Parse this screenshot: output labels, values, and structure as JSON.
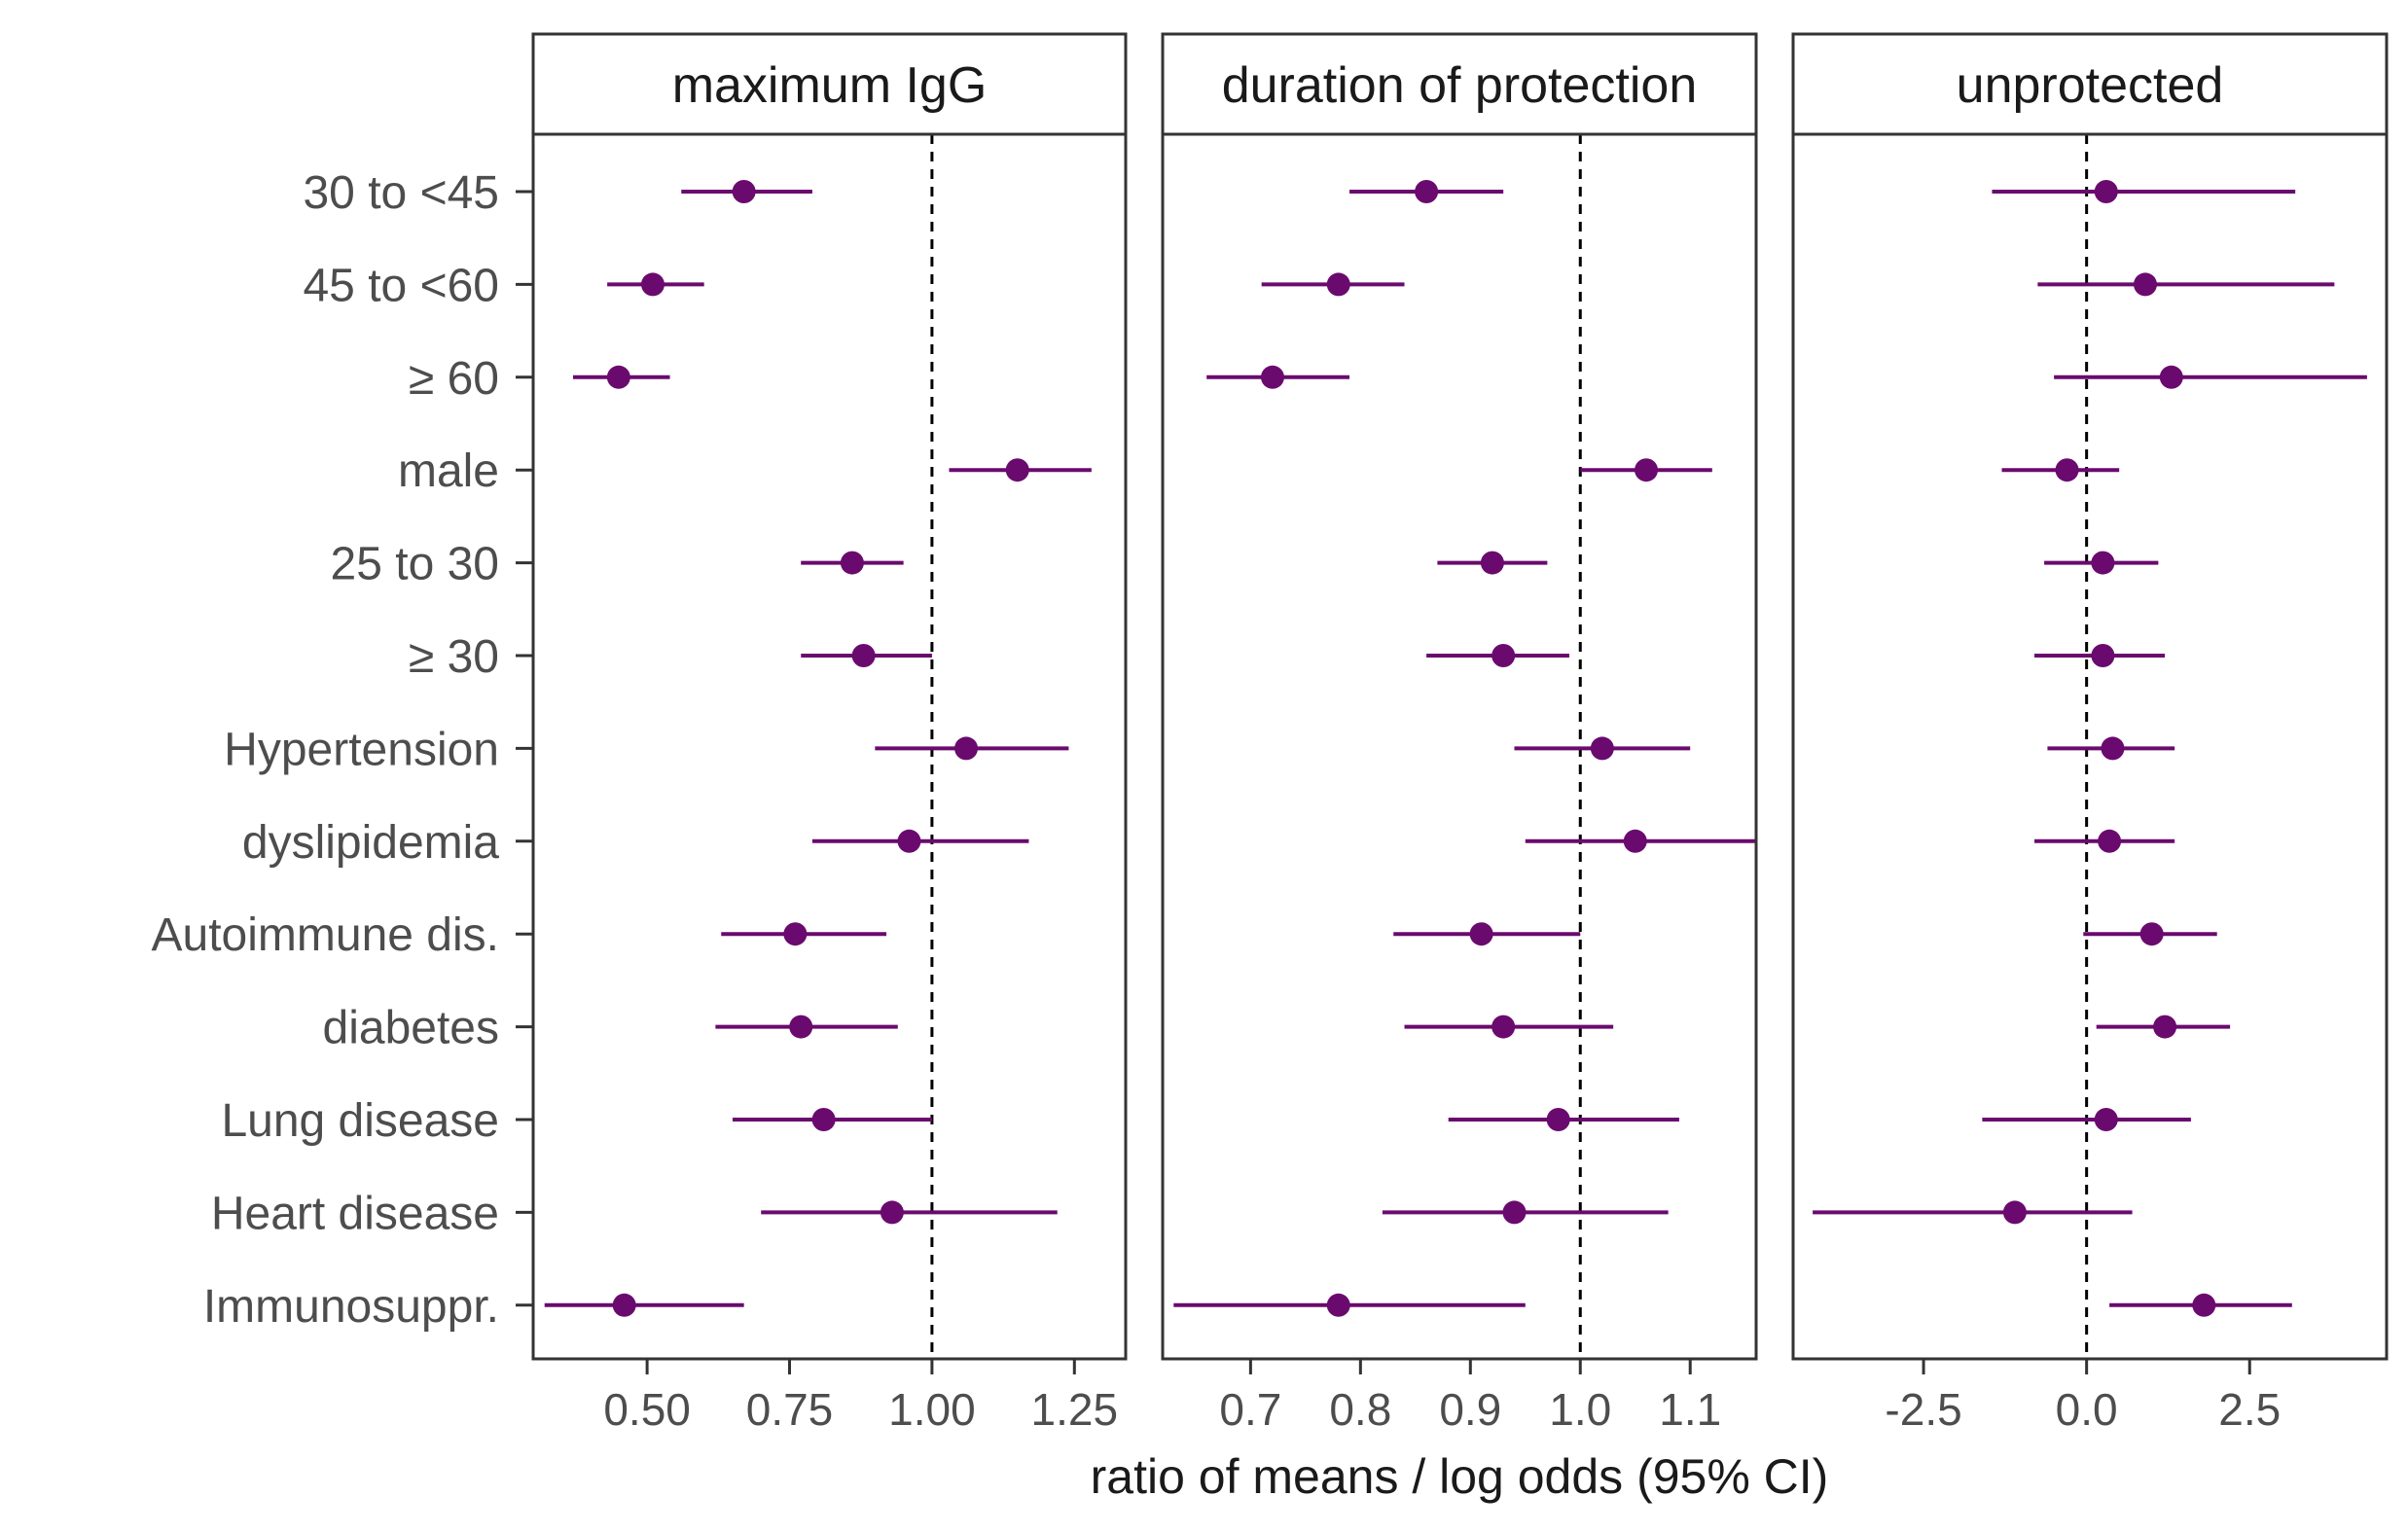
{
  "chart_data": {
    "type": "forest",
    "xlabel": "ratio of means / log odds (95% CI)",
    "categories": [
      "30 to <45",
      "45 to <60",
      "≥ 60",
      "male",
      "25 to 30",
      "≥ 30",
      "Hypertension",
      "dyslipidemia",
      "Autoimmune dis.",
      "diabetes",
      "Lung disease",
      "Heart disease",
      "Immunosuppr."
    ],
    "color": "#6a0a6e",
    "panels": [
      {
        "title": "maximum IgG",
        "xlim": [
          0.3,
          1.34
        ],
        "ticks": [
          0.5,
          0.75,
          1.0,
          1.25
        ],
        "tick_labels": [
          "0.50",
          "0.75",
          "1.00",
          "1.25"
        ],
        "ref": 1.0,
        "estimate": [
          0.67,
          0.51,
          0.45,
          1.15,
          0.86,
          0.88,
          1.06,
          0.96,
          0.76,
          0.77,
          0.81,
          0.93,
          0.46
        ],
        "lower": [
          0.56,
          0.43,
          0.37,
          1.03,
          0.77,
          0.77,
          0.9,
          0.79,
          0.63,
          0.62,
          0.65,
          0.7,
          0.32
        ],
        "upper": [
          0.79,
          0.6,
          0.54,
          1.28,
          0.95,
          1.0,
          1.24,
          1.17,
          0.92,
          0.94,
          1.0,
          1.22,
          0.67
        ]
      },
      {
        "title": "duration of protection",
        "xlim": [
          0.62,
          1.16
        ],
        "ticks": [
          0.7,
          0.8,
          0.9,
          1.0,
          1.1
        ],
        "tick_labels": [
          "0.7",
          "0.8",
          "0.9",
          "1.0",
          "1.1"
        ],
        "ref": 1.0,
        "estimate": [
          0.86,
          0.78,
          0.72,
          1.06,
          0.92,
          0.93,
          1.02,
          1.05,
          0.91,
          0.93,
          0.98,
          0.94,
          0.78
        ],
        "lower": [
          0.79,
          0.71,
          0.66,
          1.0,
          0.87,
          0.86,
          0.94,
          0.95,
          0.83,
          0.84,
          0.88,
          0.82,
          0.63
        ],
        "upper": [
          0.93,
          0.84,
          0.79,
          1.12,
          0.97,
          0.99,
          1.1,
          1.16,
          1.0,
          1.03,
          1.09,
          1.08,
          0.95
        ]
      },
      {
        "title": "unprotected",
        "xlim": [
          -4.5,
          4.6
        ],
        "ticks": [
          -2.5,
          0.0,
          2.5
        ],
        "tick_labels": [
          "-2.5",
          "0.0",
          "2.5"
        ],
        "ref": 0.0,
        "estimate": [
          0.3,
          0.9,
          1.3,
          -0.3,
          0.25,
          0.25,
          0.4,
          0.35,
          1.0,
          1.2,
          0.3,
          -1.1,
          1.8
        ],
        "lower": [
          -1.45,
          -0.75,
          -0.5,
          -1.3,
          -0.65,
          -0.8,
          -0.6,
          -0.8,
          -0.05,
          0.15,
          -1.6,
          -4.2,
          0.35
        ],
        "upper": [
          3.2,
          3.8,
          4.3,
          0.5,
          1.1,
          1.2,
          1.35,
          1.35,
          2.0,
          2.2,
          1.6,
          0.7,
          3.15
        ]
      }
    ]
  }
}
